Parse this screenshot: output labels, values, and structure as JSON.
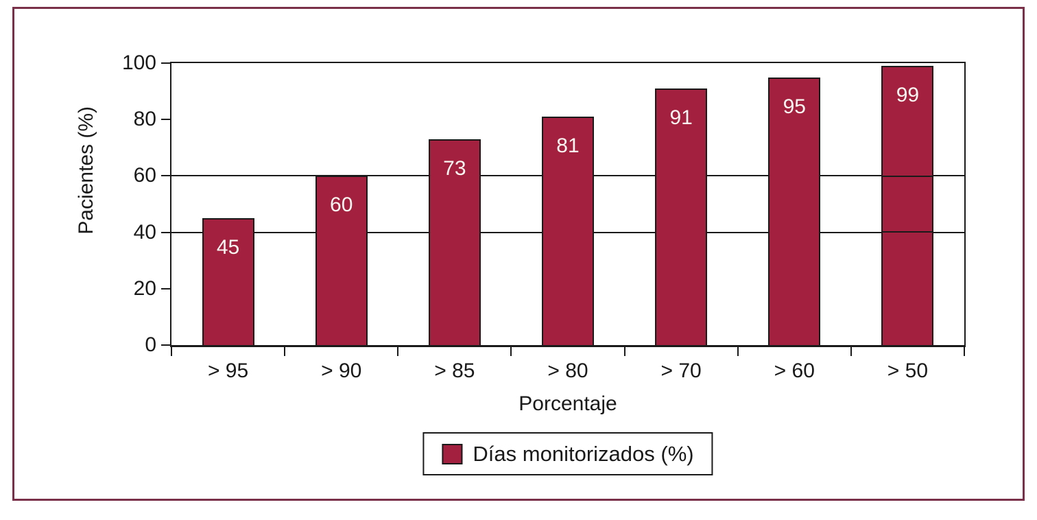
{
  "chart_data": {
    "type": "bar",
    "title": "",
    "categories": [
      "> 95",
      "> 90",
      "> 85",
      "> 80",
      "> 70",
      "> 60",
      "> 50"
    ],
    "series": [
      {
        "name": "Días monitorizados (%)",
        "values": [
          45,
          60,
          73,
          81,
          91,
          95,
          99
        ]
      }
    ],
    "data_labels": [
      "45",
      "60",
      "73",
      "81",
      "91",
      "95",
      "99"
    ],
    "xlabel": "Porcentaje",
    "ylabel": "Pacientes (%)",
    "ylim": [
      0,
      100
    ],
    "yticks": [
      0,
      20,
      40,
      60,
      80,
      100
    ],
    "ytick_labels": [
      "0",
      "20",
      "40",
      "60",
      "80",
      "100"
    ],
    "gridlines": [
      40,
      60
    ],
    "grid": "horizontal",
    "legend_position": "bottom-center",
    "colors": {
      "bar_fill": "#a3203f",
      "bar_border": "#1a1a1a",
      "axis_line": "#1a1a1a",
      "frame_border": "#7a3048",
      "value_label_text": "#faf7f2",
      "background": "#ffffff"
    }
  }
}
